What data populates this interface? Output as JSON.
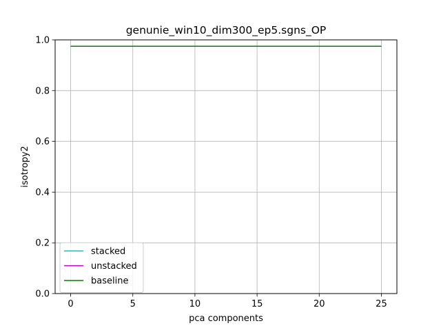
{
  "chart_data": {
    "type": "line",
    "title": "genunie_win10_dim300_ep5.sgns_OP",
    "xlabel": "pca components",
    "ylabel": "isotropy2",
    "xlim": [
      -1.25,
      26.25
    ],
    "ylim": [
      0.0,
      1.0
    ],
    "xticks": [
      0,
      5,
      10,
      15,
      20,
      25
    ],
    "yticks": [
      0.0,
      0.2,
      0.4,
      0.6,
      0.8,
      1.0
    ],
    "xtick_labels": [
      "0",
      "5",
      "10",
      "15",
      "20",
      "25"
    ],
    "ytick_labels": [
      "0.0",
      "0.2",
      "0.4",
      "0.6",
      "0.8",
      "1.0"
    ],
    "grid": true,
    "legend_position": "lower-left",
    "series": [
      {
        "name": "stacked",
        "color": "#17becf",
        "x": [],
        "y": []
      },
      {
        "name": "unstacked",
        "color": "#bf00bf",
        "x": [],
        "y": []
      },
      {
        "name": "baseline",
        "color": "#008000",
        "x": [
          0,
          25
        ],
        "y": [
          0.975,
          0.975
        ]
      }
    ]
  }
}
